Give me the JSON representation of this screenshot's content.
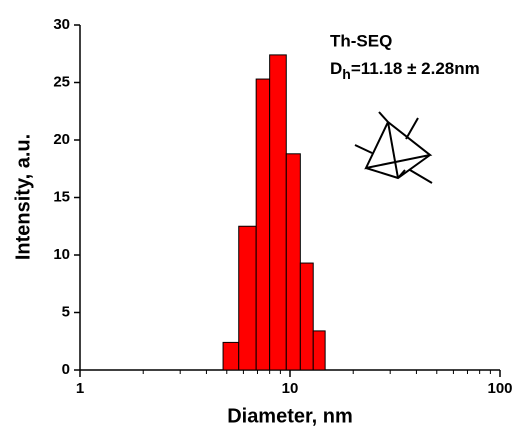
{
  "chart_data": {
    "type": "histogram",
    "x_label": "Diameter, nm",
    "y_label": "Intensity, a.u.",
    "bins": [
      4.8,
      5.7,
      6.9,
      8.0,
      9.6,
      11.2,
      12.9,
      14.7
    ],
    "counts": [
      2.4,
      12.5,
      25.3,
      27.4,
      18.8,
      9.3,
      3.4
    ],
    "color": "#ff0000",
    "log_x": true,
    "xlim": [
      1,
      100
    ],
    "xticks": [
      1,
      10,
      100
    ],
    "xminorticks": [
      2,
      3,
      4,
      5,
      6,
      7,
      8,
      9,
      20,
      30,
      40,
      50,
      60,
      70,
      80,
      90
    ],
    "ylim": [
      0,
      30
    ],
    "yticks": [
      0,
      5,
      10,
      15,
      20,
      25,
      30
    ],
    "annotation": {
      "title": "Th-SEQ",
      "label": "D",
      "subscript": "h",
      "text": "=11.18 ± 2.28nm"
    }
  }
}
